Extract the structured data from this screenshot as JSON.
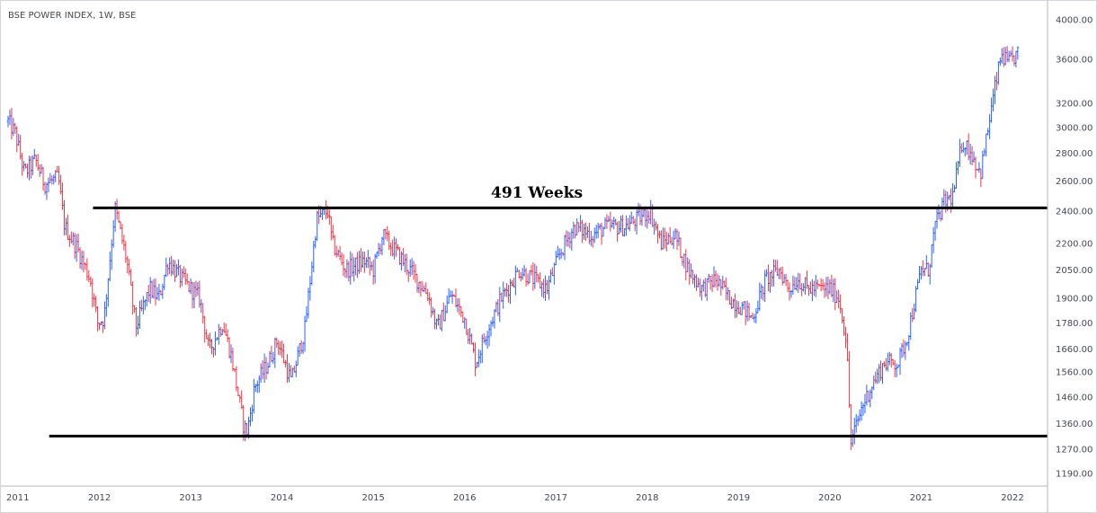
{
  "chart_title": "BSE POWER INDEX, 1W, BSE",
  "annotation": "491 Weeks",
  "colors": {
    "up": "#2962ff",
    "down": "#f23645",
    "line": "#000000",
    "axis": "#b2b5be",
    "text": "#434651"
  },
  "chart_data": {
    "type": "candlestick",
    "title": "BSE POWER INDEX, 1W, BSE",
    "xlabel": "",
    "ylabel": "",
    "x_ticks": [
      "2011",
      "2012",
      "2013",
      "2014",
      "2015",
      "2016",
      "2017",
      "2018",
      "2019",
      "2020",
      "2021",
      "2022"
    ],
    "y_ticks": [
      4000,
      3600,
      3200,
      3000,
      2800,
      2600,
      2400,
      2200,
      2050,
      1900,
      1780,
      1660,
      1560,
      1460,
      1360,
      1270,
      1190
    ],
    "y_tick_labels": [
      "4000.00",
      "3600.00",
      "3200.00",
      "3000.00",
      "2800.00",
      "2600.00",
      "2400.00",
      "2200.00",
      "2050.00",
      "1900.00",
      "1780.00",
      "1660.00",
      "1560.00",
      "1460.00",
      "1360.00",
      "1270.00",
      "1190.00"
    ],
    "y_scale": "log",
    "xlim": [
      2011.0,
      2022.4
    ],
    "ylim": [
      1150,
      4150
    ],
    "grid": false,
    "horizontal_lines": [
      {
        "y": 2420,
        "x_start": 2011.93,
        "x_end": 2022.4
      },
      {
        "y": 1315,
        "x_start": 2011.45,
        "x_end": 2022.4
      }
    ],
    "weekly_closes_anchors": [
      [
        2011.0,
        3050
      ],
      [
        2011.08,
        2950
      ],
      [
        2011.18,
        2650
      ],
      [
        2011.3,
        2750
      ],
      [
        2011.4,
        2580
      ],
      [
        2011.55,
        2620
      ],
      [
        2011.62,
        2300
      ],
      [
        2011.75,
        2180
      ],
      [
        2011.9,
        2000
      ],
      [
        2011.98,
        1780
      ],
      [
        2012.05,
        1800
      ],
      [
        2012.17,
        2420
      ],
      [
        2012.3,
        2100
      ],
      [
        2012.4,
        1760
      ],
      [
        2012.55,
        1950
      ],
      [
        2012.65,
        1900
      ],
      [
        2012.75,
        2100
      ],
      [
        2012.9,
        2000
      ],
      [
        2013.1,
        1900
      ],
      [
        2013.2,
        1650
      ],
      [
        2013.35,
        1780
      ],
      [
        2013.45,
        1620
      ],
      [
        2013.58,
        1350
      ],
      [
        2013.62,
        1330
      ],
      [
        2013.7,
        1500
      ],
      [
        2013.85,
        1600
      ],
      [
        2013.95,
        1700
      ],
      [
        2014.1,
        1520
      ],
      [
        2014.25,
        1750
      ],
      [
        2014.38,
        2350
      ],
      [
        2014.5,
        2400
      ],
      [
        2014.55,
        2200
      ],
      [
        2014.7,
        2050
      ],
      [
        2014.9,
        2100
      ],
      [
        2015.0,
        2050
      ],
      [
        2015.1,
        2250
      ],
      [
        2015.25,
        2150
      ],
      [
        2015.4,
        2050
      ],
      [
        2015.6,
        1920
      ],
      [
        2015.7,
        1750
      ],
      [
        2015.85,
        1920
      ],
      [
        2016.0,
        1800
      ],
      [
        2016.12,
        1600
      ],
      [
        2016.25,
        1750
      ],
      [
        2016.4,
        1900
      ],
      [
        2016.6,
        2050
      ],
      [
        2016.75,
        2000
      ],
      [
        2016.9,
        1950
      ],
      [
        2017.05,
        2150
      ],
      [
        2017.2,
        2300
      ],
      [
        2017.4,
        2250
      ],
      [
        2017.55,
        2300
      ],
      [
        2017.75,
        2300
      ],
      [
        2017.9,
        2350
      ],
      [
        2018.03,
        2400
      ],
      [
        2018.15,
        2200
      ],
      [
        2018.3,
        2250
      ],
      [
        2018.45,
        2050
      ],
      [
        2018.6,
        1950
      ],
      [
        2018.75,
        2000
      ],
      [
        2018.9,
        1900
      ],
      [
        2019.05,
        1850
      ],
      [
        2019.15,
        1800
      ],
      [
        2019.3,
        2000
      ],
      [
        2019.45,
        2050
      ],
      [
        2019.55,
        1950
      ],
      [
        2019.65,
        2000
      ],
      [
        2019.75,
        1950
      ],
      [
        2019.9,
        1950
      ],
      [
        2020.0,
        1950
      ],
      [
        2020.1,
        1900
      ],
      [
        2020.18,
        1700
      ],
      [
        2020.23,
        1290
      ],
      [
        2020.35,
        1420
      ],
      [
        2020.45,
        1500
      ],
      [
        2020.6,
        1600
      ],
      [
        2020.75,
        1600
      ],
      [
        2020.85,
        1720
      ],
      [
        2021.0,
        2050
      ],
      [
        2021.08,
        2050
      ],
      [
        2021.15,
        2300
      ],
      [
        2021.25,
        2450
      ],
      [
        2021.35,
        2500
      ],
      [
        2021.45,
        2900
      ],
      [
        2021.55,
        2800
      ],
      [
        2021.65,
        2650
      ],
      [
        2021.8,
        3300
      ],
      [
        2021.88,
        3650
      ],
      [
        2021.95,
        3550
      ],
      [
        2022.05,
        3650
      ]
    ]
  }
}
